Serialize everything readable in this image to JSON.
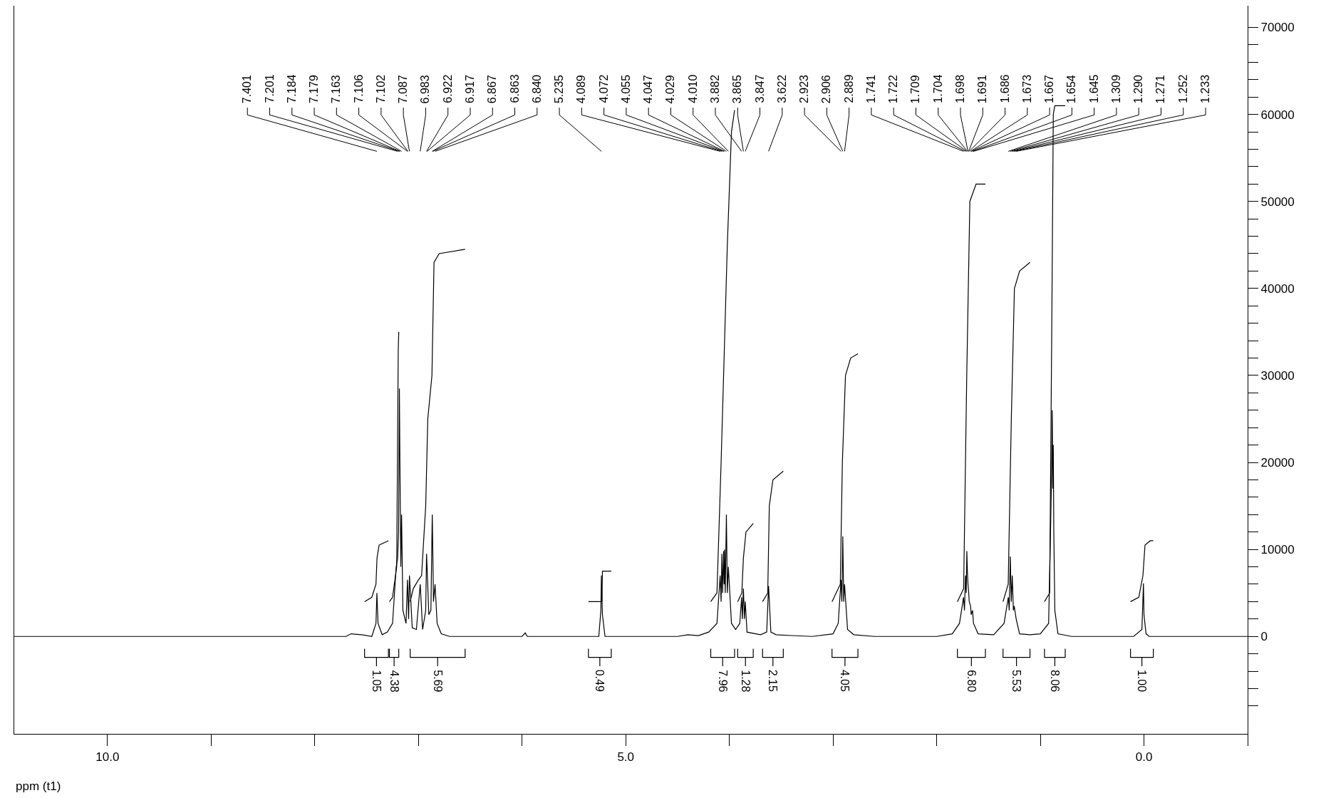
{
  "chart_data": {
    "type": "line",
    "xlabel": "ppm (t1)",
    "xlim": [
      10.9,
      -1.0
    ],
    "xticks": [
      {
        "value": 10,
        "label": "10.0"
      },
      {
        "value": 9,
        "label": null
      },
      {
        "value": 8,
        "label": null
      },
      {
        "value": 7,
        "label": null
      },
      {
        "value": 6,
        "label": null
      },
      {
        "value": 5,
        "label": "5.0"
      },
      {
        "value": 4,
        "label": null
      },
      {
        "value": 3,
        "label": null
      },
      {
        "value": 2,
        "label": null
      },
      {
        "value": 1,
        "label": null
      },
      {
        "value": 0,
        "label": "0.0"
      },
      {
        "value": -1,
        "label": null
      }
    ],
    "ylim": [
      -11200,
      72500
    ],
    "yticks": [
      {
        "value": -8000,
        "label": null
      },
      {
        "value": -6000,
        "label": null
      },
      {
        "value": -4000,
        "label": null
      },
      {
        "value": -2000,
        "label": null
      },
      0,
      {
        "value": 2000,
        "label": null
      },
      {
        "value": 4000,
        "label": null
      },
      {
        "value": 6000,
        "label": null
      },
      {
        "value": 8000,
        "label": null
      },
      10000,
      {
        "value": 12000,
        "label": null
      },
      {
        "value": 14000,
        "label": null
      },
      {
        "value": 16000,
        "label": null
      },
      {
        "value": 18000,
        "label": null
      },
      20000,
      {
        "value": 22000,
        "label": null
      },
      {
        "value": 24000,
        "label": null
      },
      {
        "value": 26000,
        "label": null
      },
      {
        "value": 28000,
        "label": null
      },
      30000,
      {
        "value": 32000,
        "label": null
      },
      {
        "value": 34000,
        "label": null
      },
      {
        "value": 36000,
        "label": null
      },
      {
        "value": 38000,
        "label": null
      },
      40000,
      {
        "value": 42000,
        "label": null
      },
      {
        "value": 44000,
        "label": null
      },
      {
        "value": 46000,
        "label": null
      },
      {
        "value": 48000,
        "label": null
      },
      50000,
      {
        "value": 52000,
        "label": null
      },
      {
        "value": 54000,
        "label": null
      },
      {
        "value": 56000,
        "label": null
      },
      {
        "value": 58000,
        "label": null
      },
      60000,
      {
        "value": 62000,
        "label": null
      },
      {
        "value": 64000,
        "label": null
      },
      {
        "value": 66000,
        "label": null
      },
      {
        "value": 68000,
        "label": null
      },
      70000
    ],
    "legend": "bottom",
    "marker": "none",
    "line_style": "solid",
    "series": [
      {
        "color": "#000000",
        "x": [
          10.9,
          7.7,
          7.65,
          7.55,
          7.45,
          7.41,
          7.401,
          7.39,
          7.35,
          7.3,
          7.25,
          7.215,
          7.201,
          7.192,
          7.184,
          7.179,
          7.17,
          7.163,
          7.15,
          7.12,
          7.106,
          7.102,
          7.095,
          7.087,
          7.06,
          7.02,
          6.983,
          6.96,
          6.93,
          6.922,
          6.917,
          6.9,
          6.88,
          6.867,
          6.863,
          6.855,
          6.84,
          6.82,
          6.78,
          6.7,
          6.0,
          5.97,
          5.95,
          5.26,
          5.24,
          5.235,
          5.225,
          5.2,
          4.5,
          4.4,
          4.3,
          4.2,
          4.12,
          4.089,
          4.08,
          4.072,
          4.065,
          4.055,
          4.05,
          4.047,
          4.04,
          4.029,
          4.02,
          4.01,
          3.98,
          3.94,
          3.9,
          3.882,
          3.875,
          3.865,
          3.855,
          3.847,
          3.83,
          3.7,
          3.64,
          3.622,
          3.6,
          3.55,
          3.4,
          3.2,
          3.0,
          2.95,
          2.923,
          2.915,
          2.906,
          2.897,
          2.889,
          2.86,
          2.8,
          2.6,
          2.0,
          1.85,
          1.78,
          1.741,
          1.732,
          1.722,
          1.715,
          1.709,
          1.704,
          1.698,
          1.691,
          1.686,
          1.673,
          1.667,
          1.654,
          1.645,
          1.6,
          1.45,
          1.35,
          1.309,
          1.3,
          1.29,
          1.28,
          1.271,
          1.26,
          1.252,
          1.233,
          1.2,
          1.1,
          1.0,
          0.92,
          0.9,
          0.89,
          0.885,
          0.88,
          0.875,
          0.87,
          0.86,
          0.83,
          0.7,
          0.1,
          0.02,
          0.005,
          0.0,
          -0.02,
          -0.05,
          -1.0
        ],
        "values": [
          0,
          0,
          300,
          200,
          0,
          1500,
          5000,
          1500,
          200,
          500,
          1500,
          8000,
          9000,
          12000,
          28500,
          20000,
          8000,
          14000,
          3000,
          1500,
          6500,
          5000,
          2000,
          7000,
          1000,
          800,
          6000,
          800,
          3000,
          9500,
          8000,
          2500,
          3000,
          14000,
          11000,
          4000,
          6000,
          1500,
          300,
          0,
          0,
          400,
          0,
          0,
          3000,
          7000,
          2500,
          0,
          0,
          200,
          100,
          500,
          1500,
          7000,
          4000,
          9500,
          5000,
          9800,
          6000,
          10000,
          5000,
          14000,
          5000,
          8000,
          1500,
          800,
          1500,
          4500,
          2000,
          5500,
          2000,
          4000,
          500,
          200,
          500,
          5800,
          500,
          200,
          100,
          0,
          300,
          1500,
          6500,
          4000,
          11500,
          4000,
          6000,
          800,
          200,
          0,
          0,
          300,
          1500,
          4500,
          3000,
          7000,
          5000,
          9800,
          7500,
          6000,
          5000,
          4000,
          3500,
          2500,
          3000,
          1500,
          300,
          200,
          1500,
          4500,
          3000,
          9200,
          4000,
          7000,
          3000,
          3500,
          2000,
          300,
          200,
          300,
          1500,
          13000,
          20000,
          26000,
          17000,
          22000,
          12000,
          3000,
          300,
          0,
          0,
          800,
          6100,
          2500,
          300,
          0,
          0
        ]
      },
      {
        "name": "1.05",
        "color": "#000000",
        "x": [
          7.52,
          7.45,
          7.41,
          7.4,
          7.38,
          7.29
        ],
        "values": [
          4000,
          4500,
          6000,
          9000,
          10500,
          11000
        ]
      },
      {
        "name": "4.38",
        "color": "#000000",
        "x": [
          7.28,
          7.25,
          7.21,
          7.2,
          7.195,
          7.19
        ],
        "values": [
          4000,
          4500,
          8000,
          25000,
          33000,
          35000
        ]
      },
      {
        "name": "5.69",
        "color": "#000000",
        "x": [
          7.08,
          7.05,
          7.0,
          6.97,
          6.93,
          6.91,
          6.87,
          6.85,
          6.8,
          6.55
        ],
        "values": [
          4000,
          5500,
          6500,
          7000,
          15000,
          25000,
          30000,
          43000,
          44000,
          44500
        ]
      },
      {
        "name": "0.49",
        "color": "#000000",
        "x": [
          5.36,
          5.23,
          5.225,
          5.14
        ],
        "values": [
          4000,
          4000,
          7500,
          7500
        ]
      },
      {
        "name": "7.96",
        "color": "#000000",
        "x": [
          4.18,
          4.12,
          4.08,
          4.02,
          3.98,
          3.95
        ],
        "values": [
          4000,
          5000,
          20000,
          45000,
          58000,
          60500
        ]
      },
      {
        "name": "1.28",
        "color": "#000000",
        "x": [
          3.92,
          3.88,
          3.865,
          3.84,
          3.77
        ],
        "values": [
          4000,
          5000,
          9000,
          12000,
          13000
        ]
      },
      {
        "name": "2.15",
        "color": "#000000",
        "x": [
          3.68,
          3.63,
          3.615,
          3.58,
          3.48
        ],
        "values": [
          4000,
          5000,
          15000,
          18000,
          19000
        ]
      },
      {
        "name": "4.05",
        "color": "#000000",
        "x": [
          3.01,
          2.93,
          2.91,
          2.88,
          2.83,
          2.76
        ],
        "values": [
          4000,
          6000,
          20000,
          30000,
          32000,
          32500
        ]
      },
      {
        "name": "6.80",
        "color": "#000000",
        "x": [
          1.8,
          1.74,
          1.71,
          1.68,
          1.62,
          1.53
        ],
        "values": [
          4000,
          5500,
          30000,
          50000,
          52000,
          52000
        ]
      },
      {
        "name": "5.53",
        "color": "#000000",
        "x": [
          1.36,
          1.31,
          1.28,
          1.25,
          1.2,
          1.1
        ],
        "values": [
          4000,
          6000,
          25000,
          40000,
          42000,
          43000
        ]
      },
      {
        "name": "8.06",
        "color": "#000000",
        "x": [
          0.96,
          0.91,
          0.89,
          0.875,
          0.86,
          0.76
        ],
        "values": [
          4000,
          5000,
          35000,
          60000,
          61000,
          61000
        ]
      },
      {
        "name": "1.00",
        "color": "#000000",
        "x": [
          0.13,
          0.05,
          0.01,
          -0.01,
          -0.06,
          -0.09
        ],
        "values": [
          4000,
          4500,
          7000,
          10500,
          11000,
          11000
        ]
      }
    ],
    "annotations": [
      {
        "text": "7.401",
        "x": 7.401
      },
      {
        "text": "7.201",
        "x": 7.201
      },
      {
        "text": "7.184",
        "x": 7.184
      },
      {
        "text": "7.179",
        "x": 7.179
      },
      {
        "text": "7.163",
        "x": 7.163
      },
      {
        "text": "7.106",
        "x": 7.106
      },
      {
        "text": "7.102",
        "x": 7.102
      },
      {
        "text": "7.087",
        "x": 7.087
      },
      {
        "text": "6.983",
        "x": 6.983
      },
      {
        "text": "6.922",
        "x": 6.922
      },
      {
        "text": "6.917",
        "x": 6.917
      },
      {
        "text": "6.867",
        "x": 6.867
      },
      {
        "text": "6.863",
        "x": 6.863
      },
      {
        "text": "6.840",
        "x": 6.84
      },
      {
        "text": "5.235",
        "x": 5.235
      },
      {
        "text": "4.089",
        "x": 4.089
      },
      {
        "text": "4.072",
        "x": 4.072
      },
      {
        "text": "4.055",
        "x": 4.055
      },
      {
        "text": "4.047",
        "x": 4.047
      },
      {
        "text": "4.029",
        "x": 4.029
      },
      {
        "text": "4.010",
        "x": 4.01
      },
      {
        "text": "3.882",
        "x": 3.882
      },
      {
        "text": "3.865",
        "x": 3.865
      },
      {
        "text": "3.847",
        "x": 3.847
      },
      {
        "text": "3.622",
        "x": 3.622
      },
      {
        "text": "2.923",
        "x": 2.923
      },
      {
        "text": "2.906",
        "x": 2.906
      },
      {
        "text": "2.889",
        "x": 2.889
      },
      {
        "text": "1.741",
        "x": 1.741
      },
      {
        "text": "1.722",
        "x": 1.722
      },
      {
        "text": "1.709",
        "x": 1.709
      },
      {
        "text": "1.704",
        "x": 1.704
      },
      {
        "text": "1.698",
        "x": 1.698
      },
      {
        "text": "1.691",
        "x": 1.691
      },
      {
        "text": "1.686",
        "x": 1.686
      },
      {
        "text": "1.673",
        "x": 1.673
      },
      {
        "text": "1.667",
        "x": 1.667
      },
      {
        "text": "1.654",
        "x": 1.654
      },
      {
        "text": "1.645",
        "x": 1.645
      },
      {
        "text": "1.309",
        "x": 1.309
      },
      {
        "text": "1.290",
        "x": 1.29
      },
      {
        "text": "1.271",
        "x": 1.271
      },
      {
        "text": "1.252",
        "x": 1.252
      },
      {
        "text": "1.233",
        "x": 1.233
      }
    ]
  }
}
